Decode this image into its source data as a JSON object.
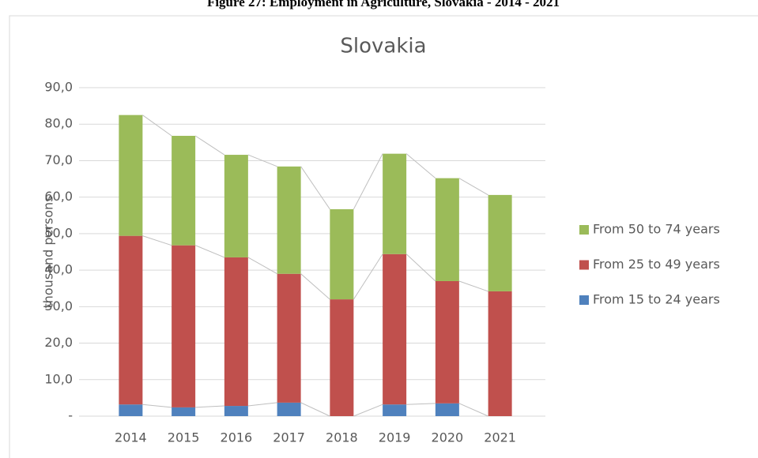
{
  "figure_title": "Figure 27: Employment in Agriculture, Slovakia - 2014 - 2021",
  "chart_data": {
    "type": "stacked_bar",
    "title": "Slovakia",
    "y_label": "thousand persons",
    "categories": [
      "2014",
      "2015",
      "2016",
      "2017",
      "2018",
      "2019",
      "2020",
      "2021"
    ],
    "series": [
      {
        "name": "From 15 to 24 years",
        "color": "#4f81bd",
        "values": [
          3.2,
          2.4,
          2.8,
          3.7,
          0,
          3.2,
          3.5,
          0
        ]
      },
      {
        "name": "From 25 to 49 years",
        "color": "#c0504d",
        "values": [
          46.2,
          44.4,
          40.7,
          35.3,
          32.0,
          41.2,
          33.5,
          34.2
        ]
      },
      {
        "name": "From 50 to 74 years",
        "color": "#9bbb59",
        "values": [
          33.1,
          30.0,
          28.1,
          29.4,
          24.7,
          27.5,
          28.2,
          26.4
        ]
      }
    ],
    "ylim": [
      0,
      90
    ],
    "yticks": [
      {
        "value": 0,
        "label": "-"
      },
      {
        "value": 10,
        "label": "10,0"
      },
      {
        "value": 20,
        "label": "20,0"
      },
      {
        "value": 30,
        "label": "30,0"
      },
      {
        "value": 40,
        "label": "40,0"
      },
      {
        "value": 50,
        "label": "50,0"
      },
      {
        "value": 60,
        "label": "60,0"
      },
      {
        "value": 70,
        "label": "70,0"
      },
      {
        "value": 80,
        "label": "80,0"
      },
      {
        "value": 90,
        "label": "90,0"
      }
    ],
    "grid": true,
    "legend": "right"
  }
}
